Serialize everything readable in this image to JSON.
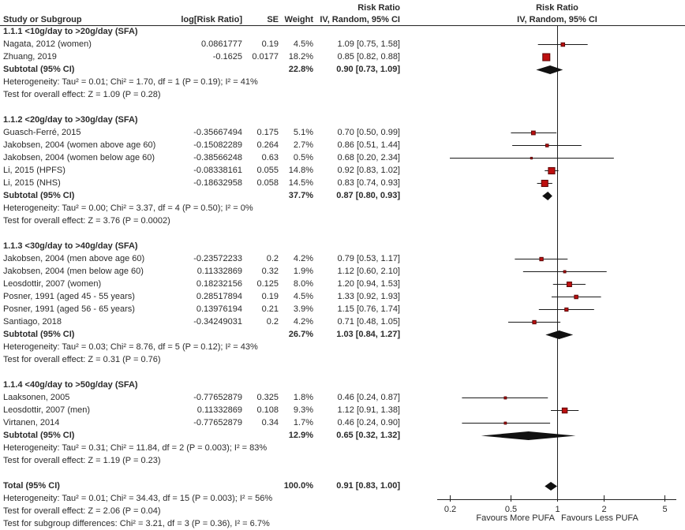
{
  "header": {
    "col_study": "Study or Subgroup",
    "col_logrr": "log[Risk Ratio]",
    "col_se": "SE",
    "col_weight": "Weight",
    "effect_col_line1": "Risk Ratio",
    "effect_col_line2": "IV, Random, 95% CI",
    "plot_line1": "Risk Ratio",
    "plot_line2": "IV, Random, 95% CI"
  },
  "colors": {
    "square_fill": "#bd0f0f",
    "square_stroke": "#5c0707",
    "diamond_fill": "#111111",
    "line": "#222222",
    "text": "#2b2b2b"
  },
  "chart_data": {
    "type": "forest",
    "effect_measure": "Risk Ratio",
    "method_label": "IV, Random, 95% CI",
    "x_scale": "log",
    "x_ticks": [
      0.2,
      0.5,
      1,
      2,
      5
    ],
    "x_tick_labels": [
      "0.2",
      "0.5",
      "1",
      "2",
      "5"
    ],
    "favours_left": "Favours More PUFA",
    "favours_right": "Favours Less PUFA",
    "groups": [
      {
        "title": "1.1.1 <10g/day to >20g/day (SFA)",
        "studies": [
          {
            "name": "Nagata, 2012 (women)",
            "log_rr": "0.0861777",
            "se": "0.19",
            "weight_pct": 4.5,
            "weight_text": "4.5%",
            "rr": 1.09,
            "ci_low": 0.75,
            "ci_high": 1.58,
            "ci_text": "1.09 [0.75, 1.58]"
          },
          {
            "name": "Zhuang, 2019",
            "log_rr": "-0.1625",
            "se": "0.0177",
            "weight_pct": 18.2,
            "weight_text": "18.2%",
            "rr": 0.85,
            "ci_low": 0.82,
            "ci_high": 0.88,
            "ci_text": "0.85 [0.82, 0.88]"
          }
        ],
        "subtotal": {
          "label": "Subtotal (95% CI)",
          "weight_text": "22.8%",
          "rr": 0.9,
          "ci_low": 0.73,
          "ci_high": 1.09,
          "ci_text": "0.90 [0.73, 1.09]"
        },
        "heterogeneity": "Heterogeneity: Tau² = 0.01; Chi² = 1.70, df = 1 (P = 0.19); I² = 41%",
        "overall_effect": "Test for overall effect: Z = 1.09 (P = 0.28)"
      },
      {
        "title": "1.1.2 <20g/day to >30g/day (SFA)",
        "studies": [
          {
            "name": "Guasch-Ferré, 2015",
            "log_rr": "-0.35667494",
            "se": "0.175",
            "weight_pct": 5.1,
            "weight_text": "5.1%",
            "rr": 0.7,
            "ci_low": 0.5,
            "ci_high": 0.99,
            "ci_text": "0.70 [0.50, 0.99]"
          },
          {
            "name": "Jakobsen, 2004 (women above age 60)",
            "log_rr": "-0.15082289",
            "se": "0.264",
            "weight_pct": 2.7,
            "weight_text": "2.7%",
            "rr": 0.86,
            "ci_low": 0.51,
            "ci_high": 1.44,
            "ci_text": "0.86 [0.51, 1.44]"
          },
          {
            "name": "Jakobsen, 2004 (women below age 60)",
            "log_rr": "-0.38566248",
            "se": "0.63",
            "weight_pct": 0.5,
            "weight_text": "0.5%",
            "rr": 0.68,
            "ci_low": 0.2,
            "ci_high": 2.34,
            "ci_text": "0.68 [0.20, 2.34]"
          },
          {
            "name": "Li, 2015 (HPFS)",
            "log_rr": "-0.08338161",
            "se": "0.055",
            "weight_pct": 14.8,
            "weight_text": "14.8%",
            "rr": 0.92,
            "ci_low": 0.83,
            "ci_high": 1.02,
            "ci_text": "0.92 [0.83, 1.02]"
          },
          {
            "name": "Li, 2015 (NHS)",
            "log_rr": "-0.18632958",
            "se": "0.058",
            "weight_pct": 14.5,
            "weight_text": "14.5%",
            "rr": 0.83,
            "ci_low": 0.74,
            "ci_high": 0.93,
            "ci_text": "0.83 [0.74, 0.93]"
          }
        ],
        "subtotal": {
          "label": "Subtotal (95% CI)",
          "weight_text": "37.7%",
          "rr": 0.87,
          "ci_low": 0.8,
          "ci_high": 0.93,
          "ci_text": "0.87 [0.80, 0.93]"
        },
        "heterogeneity": "Heterogeneity: Tau² = 0.00; Chi² = 3.37, df = 4 (P = 0.50); I² = 0%",
        "overall_effect": "Test for overall effect: Z = 3.76 (P = 0.0002)"
      },
      {
        "title": "1.1.3 <30g/day to >40g/day (SFA)",
        "studies": [
          {
            "name": "Jakobsen, 2004 (men above age 60)",
            "log_rr": "-0.23572233",
            "se": "0.2",
            "weight_pct": 4.2,
            "weight_text": "4.2%",
            "rr": 0.79,
            "ci_low": 0.53,
            "ci_high": 1.17,
            "ci_text": "0.79 [0.53, 1.17]"
          },
          {
            "name": "Jakobsen, 2004 (men below age 60)",
            "log_rr": "0.11332869",
            "se": "0.32",
            "weight_pct": 1.9,
            "weight_text": "1.9%",
            "rr": 1.12,
            "ci_low": 0.6,
            "ci_high": 2.1,
            "ci_text": "1.12 [0.60, 2.10]"
          },
          {
            "name": "Leosdottir, 2007 (women)",
            "log_rr": "0.18232156",
            "se": "0.125",
            "weight_pct": 8.0,
            "weight_text": "8.0%",
            "rr": 1.2,
            "ci_low": 0.94,
            "ci_high": 1.53,
            "ci_text": "1.20 [0.94, 1.53]"
          },
          {
            "name": "Posner, 1991 (aged 45 - 55 years)",
            "log_rr": "0.28517894",
            "se": "0.19",
            "weight_pct": 4.5,
            "weight_text": "4.5%",
            "rr": 1.33,
            "ci_low": 0.92,
            "ci_high": 1.93,
            "ci_text": "1.33 [0.92, 1.93]"
          },
          {
            "name": "Posner, 1991 (aged 56 - 65 years)",
            "log_rr": "0.13976194",
            "se": "0.21",
            "weight_pct": 3.9,
            "weight_text": "3.9%",
            "rr": 1.15,
            "ci_low": 0.76,
            "ci_high": 1.74,
            "ci_text": "1.15 [0.76, 1.74]"
          },
          {
            "name": "Santiago, 2018",
            "log_rr": "-0.34249031",
            "se": "0.2",
            "weight_pct": 4.2,
            "weight_text": "4.2%",
            "rr": 0.71,
            "ci_low": 0.48,
            "ci_high": 1.05,
            "ci_text": "0.71 [0.48, 1.05]"
          }
        ],
        "subtotal": {
          "label": "Subtotal (95% CI)",
          "weight_text": "26.7%",
          "rr": 1.03,
          "ci_low": 0.84,
          "ci_high": 1.27,
          "ci_text": "1.03 [0.84, 1.27]"
        },
        "heterogeneity": "Heterogeneity: Tau² = 0.03; Chi² = 8.76, df = 5 (P = 0.12); I² = 43%",
        "overall_effect": "Test for overall effect: Z = 0.31 (P = 0.76)"
      },
      {
        "title": "1.1.4 <40g/day to >50g/day (SFA)",
        "studies": [
          {
            "name": "Laaksonen, 2005",
            "log_rr": "-0.77652879",
            "se": "0.325",
            "weight_pct": 1.8,
            "weight_text": "1.8%",
            "rr": 0.46,
            "ci_low": 0.24,
            "ci_high": 0.87,
            "ci_text": "0.46 [0.24, 0.87]"
          },
          {
            "name": "Leosdottir, 2007 (men)",
            "log_rr": "0.11332869",
            "se": "0.108",
            "weight_pct": 9.3,
            "weight_text": "9.3%",
            "rr": 1.12,
            "ci_low": 0.91,
            "ci_high": 1.38,
            "ci_text": "1.12 [0.91, 1.38]"
          },
          {
            "name": "Virtanen, 2014",
            "log_rr": "-0.77652879",
            "se": "0.34",
            "weight_pct": 1.7,
            "weight_text": "1.7%",
            "rr": 0.46,
            "ci_low": 0.24,
            "ci_high": 0.9,
            "ci_text": "0.46 [0.24, 0.90]"
          }
        ],
        "subtotal": {
          "label": "Subtotal (95% CI)",
          "weight_text": "12.9%",
          "rr": 0.65,
          "ci_low": 0.32,
          "ci_high": 1.32,
          "ci_text": "0.65 [0.32, 1.32]"
        },
        "heterogeneity": "Heterogeneity: Tau² = 0.31; Chi² = 11.84, df = 2 (P = 0.003); I² = 83%",
        "overall_effect": "Test for overall effect: Z = 1.19 (P = 0.23)"
      }
    ],
    "total": {
      "label": "Total (95% CI)",
      "weight_text": "100.0%",
      "rr": 0.91,
      "ci_low": 0.83,
      "ci_high": 1.0,
      "ci_text": "0.91 [0.83, 1.00]"
    },
    "total_footnotes": [
      "Heterogeneity: Tau² = 0.01; Chi² = 34.43, df = 15 (P = 0.003); I² = 56%",
      "Test for overall effect: Z = 2.06 (P = 0.04)",
      "Test for subgroup differences: Chi² = 3.21, df = 3 (P = 0.36), I² = 6.7%"
    ]
  }
}
